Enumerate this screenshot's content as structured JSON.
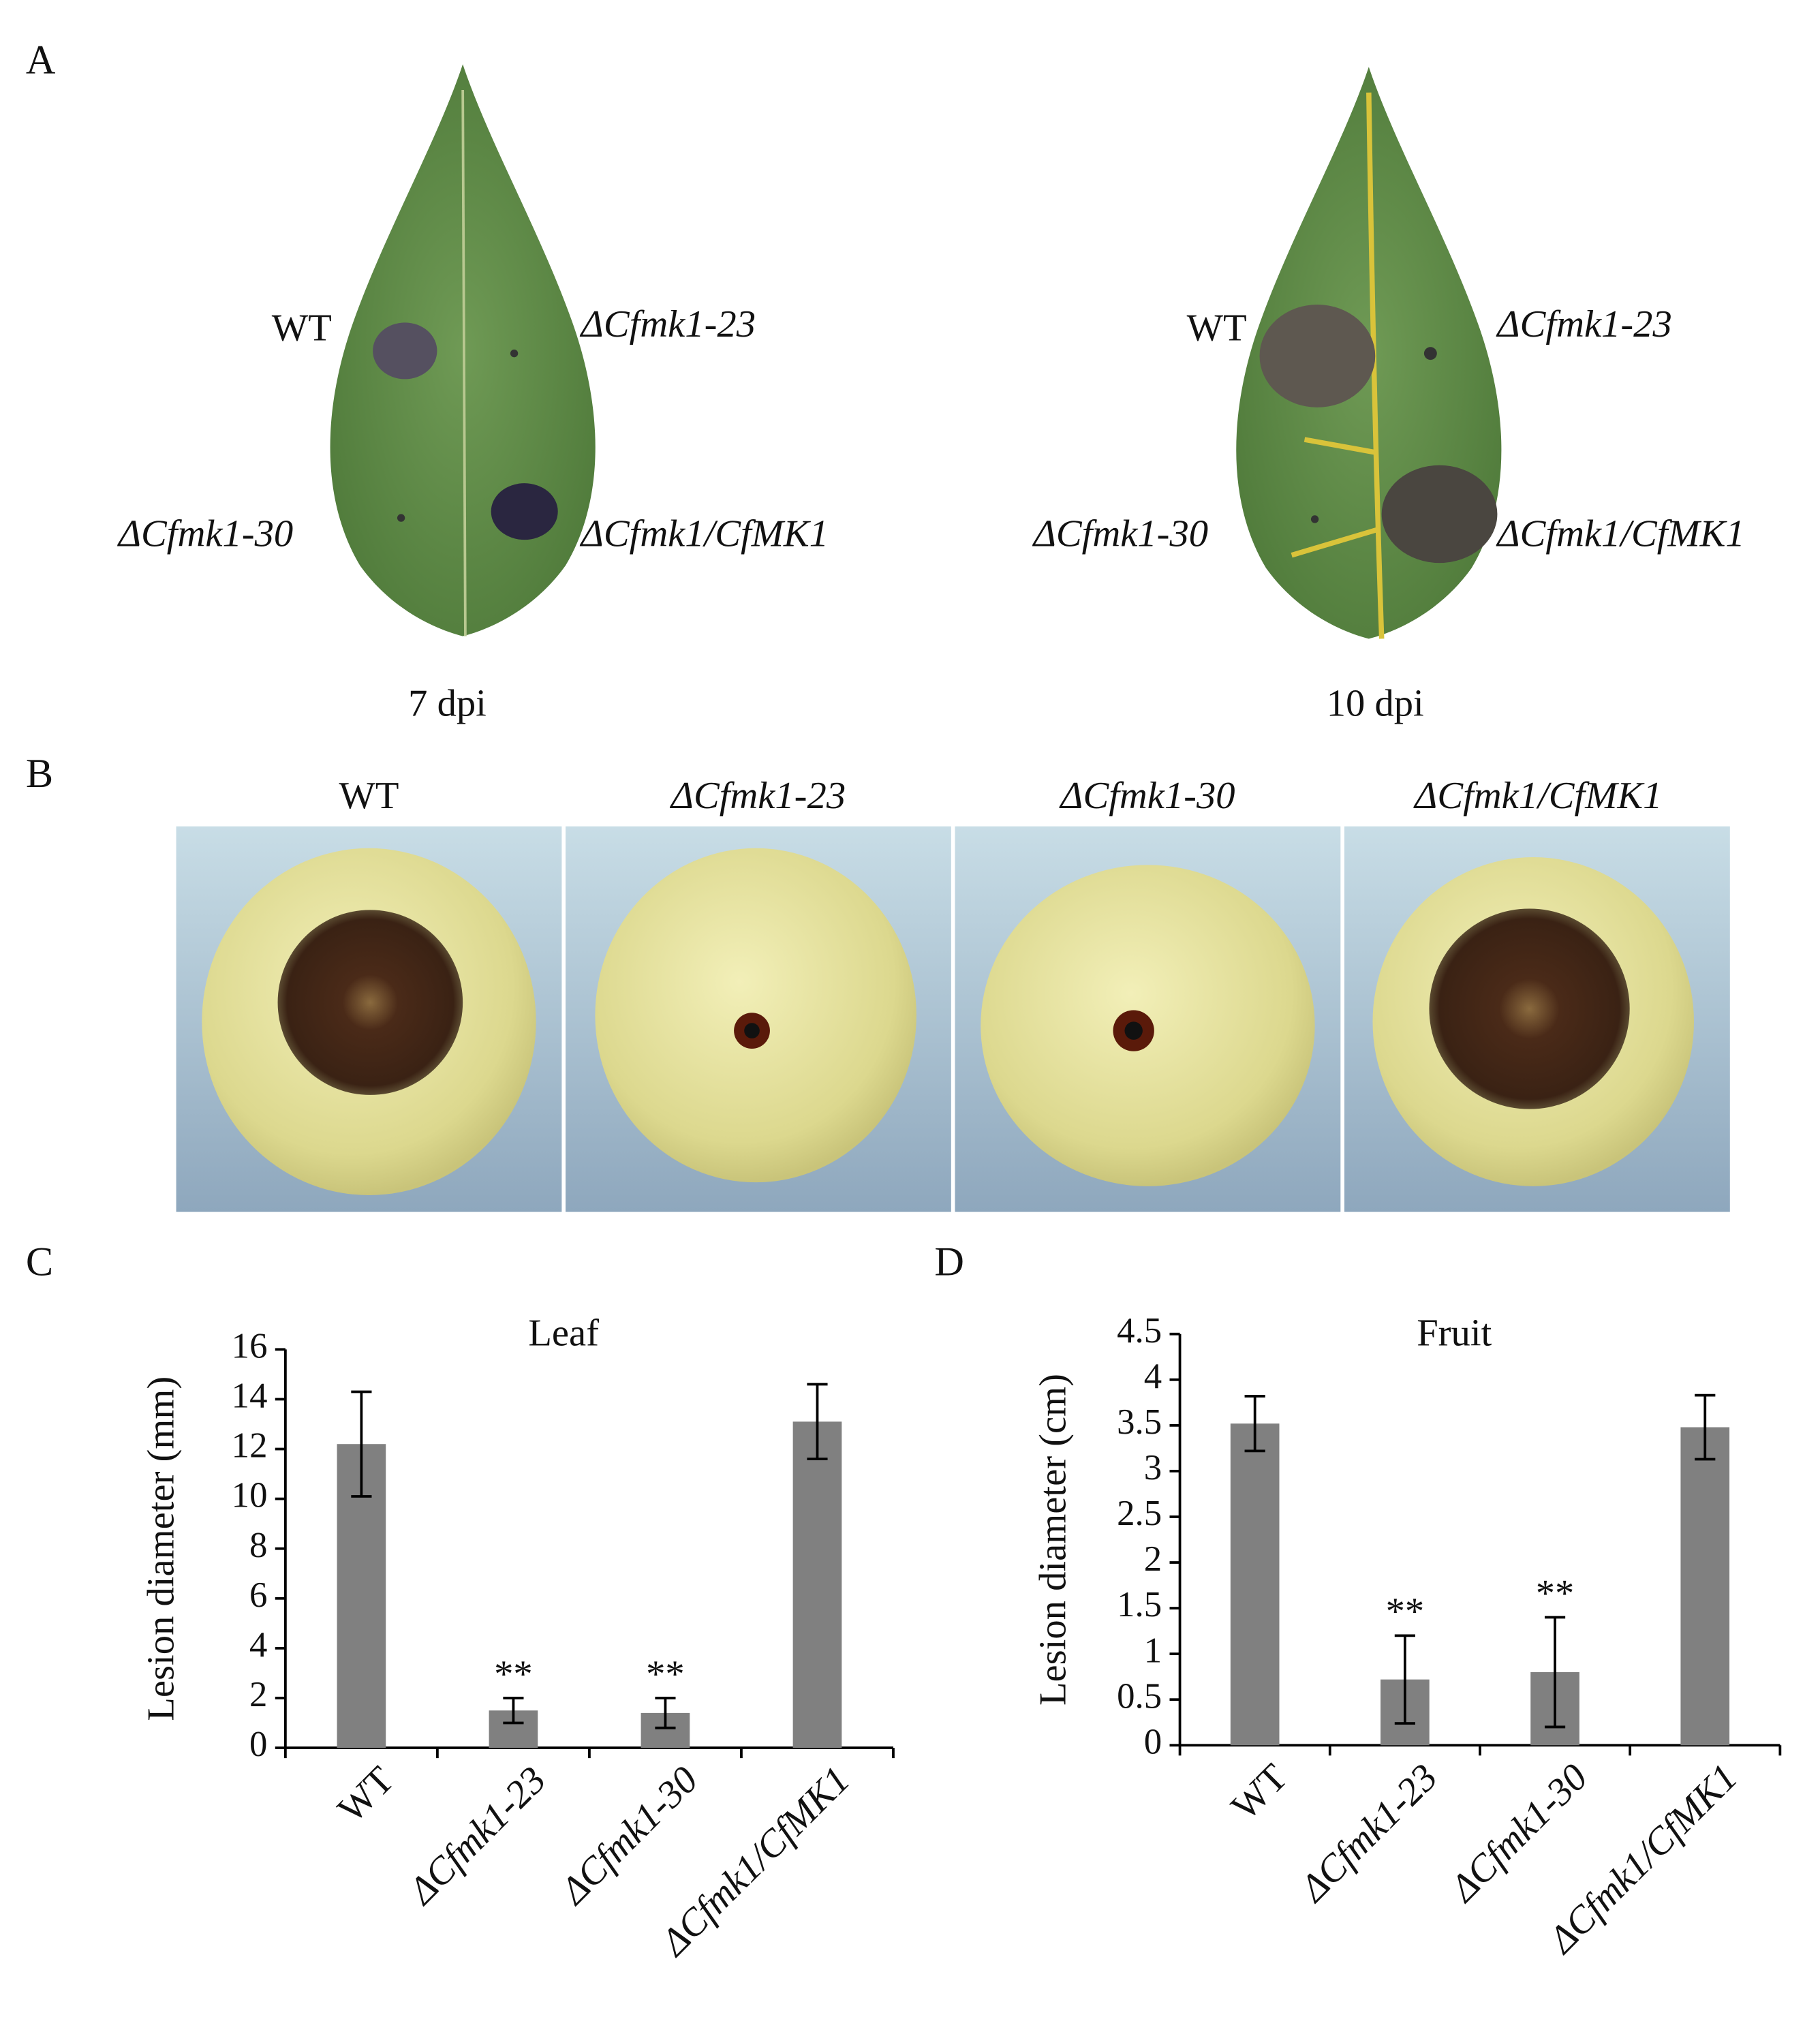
{
  "panel_a": {
    "label": "A",
    "leaves": [
      {
        "caption": "7 dpi",
        "labels": [
          "WT",
          "ΔCfmk1-23",
          "ΔCfmk1-30",
          "ΔCfmk1/CfMK1"
        ]
      },
      {
        "caption": "10 dpi",
        "labels": [
          "WT",
          "ΔCfmk1-23",
          "ΔCfmk1-30",
          "ΔCfmk1/CfMK1"
        ]
      }
    ]
  },
  "panel_b": {
    "label": "B",
    "columns": [
      "WT",
      "ΔCfmk1-23",
      "ΔCfmk1-30",
      "ΔCfmk1/CfMK1"
    ]
  },
  "chart_data": [
    {
      "type": "bar",
      "panel": "C",
      "title": "Leaf",
      "y_label": "Lesion diameter (mm)",
      "categories": [
        "WT",
        "ΔCfmk1-23",
        "ΔCfmk1-30",
        "ΔCfmk1/CfMK1"
      ],
      "values": [
        12.2,
        1.5,
        1.4,
        13.1
      ],
      "errors": [
        2.1,
        0.5,
        0.6,
        1.5
      ],
      "significance": [
        null,
        "**",
        "**",
        null
      ],
      "color": "#808080",
      "ylim": [
        0,
        16
      ],
      "yticks": [
        0,
        2,
        4,
        6,
        8,
        10,
        12,
        14,
        16
      ]
    },
    {
      "type": "bar",
      "panel": "D",
      "title": "Fruit",
      "y_label": "Lesion diameter (cm)",
      "categories": [
        "WT",
        "ΔCfmk1-23",
        "ΔCfmk1-30",
        "ΔCfmk1/CfMK1"
      ],
      "values": [
        3.52,
        0.72,
        0.8,
        3.48
      ],
      "errors": [
        0.3,
        0.48,
        0.6,
        0.35
      ],
      "significance": [
        null,
        "**",
        "**",
        null
      ],
      "color": "#808080",
      "ylim": [
        0,
        4.5
      ],
      "yticks": [
        0,
        0.5,
        1,
        1.5,
        2,
        2.5,
        3,
        3.5,
        4,
        4.5
      ]
    }
  ]
}
